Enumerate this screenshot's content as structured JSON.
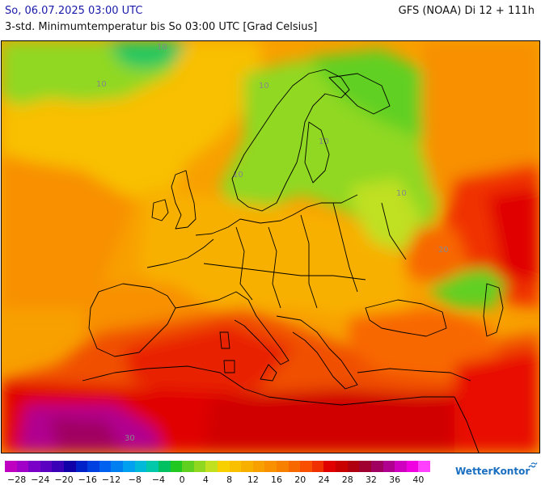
{
  "header": {
    "date": "So, 06.07.2025 03:00 UTC",
    "model": "GFS (NOAA) Di 12 + 111h",
    "parameter": "3-std. Minimumtemperatur bis So 03:00 UTC [Grad Celsius]"
  },
  "map": {
    "contour_labels": [
      "10",
      "10",
      "10",
      "10",
      "10",
      "10",
      "20",
      "30"
    ]
  },
  "legend": {
    "colors": [
      "#c000c0",
      "#a000c8",
      "#7a00c8",
      "#5a00c0",
      "#3a00b8",
      "#1000a8",
      "#0020c8",
      "#0040e0",
      "#0060f0",
      "#0080f0",
      "#00a0f0",
      "#00b8d8",
      "#00c8a8",
      "#00c060",
      "#20c820",
      "#60d020",
      "#90d820",
      "#c0e020",
      "#f8d000",
      "#f8c000",
      "#f8b000",
      "#f8a000",
      "#f89000",
      "#f88000",
      "#f86800",
      "#f85000",
      "#f03000",
      "#e00000",
      "#c80000",
      "#b00010",
      "#a00030",
      "#a00060",
      "#b00090",
      "#d000c0",
      "#f000e0",
      "#ff40ff"
    ],
    "ticks": [
      "−28",
      "−24",
      "−20",
      "−16",
      "−12",
      "−8",
      "−4",
      "0",
      "4",
      "8",
      "12",
      "16",
      "20",
      "24",
      "28",
      "32",
      "36",
      "40"
    ]
  },
  "brand": {
    "name": "WetterKontor"
  }
}
